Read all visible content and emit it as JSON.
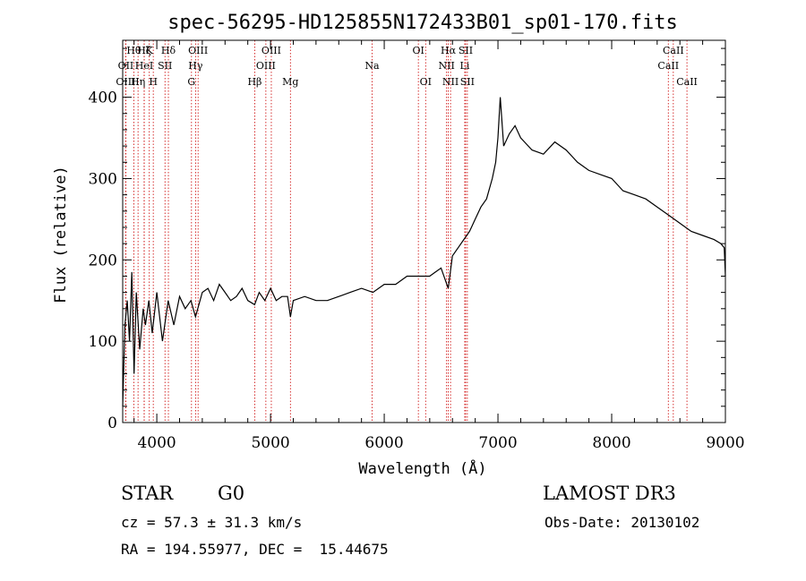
{
  "chart_data": {
    "type": "line",
    "title": "spec-56295-HD125855N172433B01_sp01-170.fits",
    "xlabel": "Wavelength (Å)",
    "ylabel": "Flux (relative)",
    "xlim": [
      3700,
      9000
    ],
    "ylim": [
      0,
      470
    ],
    "xticks": [
      4000,
      5000,
      6000,
      7000,
      8000,
      9000
    ],
    "yticks": [
      0,
      100,
      200,
      300,
      400
    ],
    "grid": false,
    "series": [
      {
        "x": [
          3700,
          3720,
          3740,
          3760,
          3780,
          3800,
          3820,
          3850,
          3880,
          3900,
          3930,
          3960,
          4000,
          4050,
          4100,
          4150,
          4200,
          4250,
          4300,
          4340,
          4400,
          4450,
          4500,
          4550,
          4600,
          4650,
          4700,
          4750,
          4800,
          4860,
          4900,
          4950,
          5000,
          5050,
          5100,
          5150,
          5175,
          5200,
          5300,
          5400,
          5500,
          5600,
          5700,
          5800,
          5900,
          6000,
          6100,
          6200,
          6300,
          6400,
          6450,
          6500,
          6563,
          6600,
          6650,
          6700,
          6750,
          6800,
          6850,
          6900,
          6950,
          6980,
          7000,
          7020,
          7050,
          7100,
          7150,
          7200,
          7300,
          7400,
          7500,
          7600,
          7700,
          7800,
          7900,
          8000,
          8100,
          8200,
          8300,
          8400,
          8500,
          8600,
          8700,
          8800,
          8900,
          8960,
          8990,
          9000
        ],
        "y": [
          20,
          120,
          150,
          100,
          185,
          60,
          160,
          90,
          140,
          120,
          150,
          110,
          160,
          100,
          150,
          120,
          155,
          140,
          150,
          130,
          160,
          165,
          150,
          170,
          160,
          150,
          155,
          165,
          150,
          145,
          160,
          150,
          165,
          150,
          155,
          155,
          130,
          150,
          155,
          150,
          150,
          155,
          160,
          165,
          160,
          170,
          170,
          180,
          180,
          180,
          185,
          190,
          165,
          205,
          215,
          225,
          235,
          250,
          265,
          275,
          300,
          320,
          350,
          400,
          340,
          355,
          365,
          350,
          335,
          330,
          345,
          335,
          320,
          310,
          305,
          300,
          285,
          280,
          275,
          265,
          255,
          245,
          235,
          230,
          225,
          220,
          215,
          180
        ]
      }
    ],
    "annotations": [
      {
        "label": "Hθ",
        "x": 3798,
        "row": 0
      },
      {
        "label": "OII",
        "x": 3727,
        "row": 1
      },
      {
        "label": "OIII",
        "x": 3727,
        "row": 2
      },
      {
        "label": "Hζ",
        "x": 3889,
        "row": 0
      },
      {
        "label": "HeI",
        "x": 3889,
        "row": 1
      },
      {
        "label": "Hη",
        "x": 3835,
        "row": 2
      },
      {
        "label": "K",
        "x": 3934,
        "row": 0
      },
      {
        "label": "SII",
        "x": 4072,
        "row": 1
      },
      {
        "label": "H",
        "x": 3969,
        "row": 2
      },
      {
        "label": "Hδ",
        "x": 4102,
        "row": 0
      },
      {
        "label": "OIII",
        "x": 4363,
        "row": 0
      },
      {
        "label": "Hγ",
        "x": 4341,
        "row": 1
      },
      {
        "label": "G",
        "x": 4305,
        "row": 2
      },
      {
        "label": "OIII",
        "x": 5007,
        "row": 0
      },
      {
        "label": "OIII",
        "x": 4959,
        "row": 1
      },
      {
        "label": "Hβ",
        "x": 4861,
        "row": 2
      },
      {
        "label": "Mg",
        "x": 5175,
        "row": 2
      },
      {
        "label": "Na",
        "x": 5893,
        "row": 1
      },
      {
        "label": "OI",
        "x": 6300,
        "row": 0
      },
      {
        "label": "OI",
        "x": 6364,
        "row": 2
      },
      {
        "label": "Hα",
        "x": 6563,
        "row": 0
      },
      {
        "label": "SII",
        "x": 6716,
        "row": 0
      },
      {
        "label": "NII",
        "x": 6548,
        "row": 1
      },
      {
        "label": "Li",
        "x": 6708,
        "row": 1
      },
      {
        "label": "NII",
        "x": 6583,
        "row": 2
      },
      {
        "label": "SII",
        "x": 6731,
        "row": 2
      },
      {
        "label": "CaII",
        "x": 8542,
        "row": 0
      },
      {
        "label": "CaII",
        "x": 8498,
        "row": 1
      },
      {
        "label": "CaII",
        "x": 8662,
        "row": 2
      }
    ]
  },
  "info": {
    "object_type": "STAR",
    "subclass": "G0",
    "survey": "LAMOST DR3",
    "redshift": "cz = 57.3 ± 31.3 km/s",
    "obs_date": "Obs-Date: 20130102",
    "coords": "RA = 194.55977, DEC =  15.44675"
  },
  "colors": {
    "spectrum": "#000000",
    "line_marker": "#cc0000",
    "axes": "#000000",
    "background": "#ffffff"
  }
}
